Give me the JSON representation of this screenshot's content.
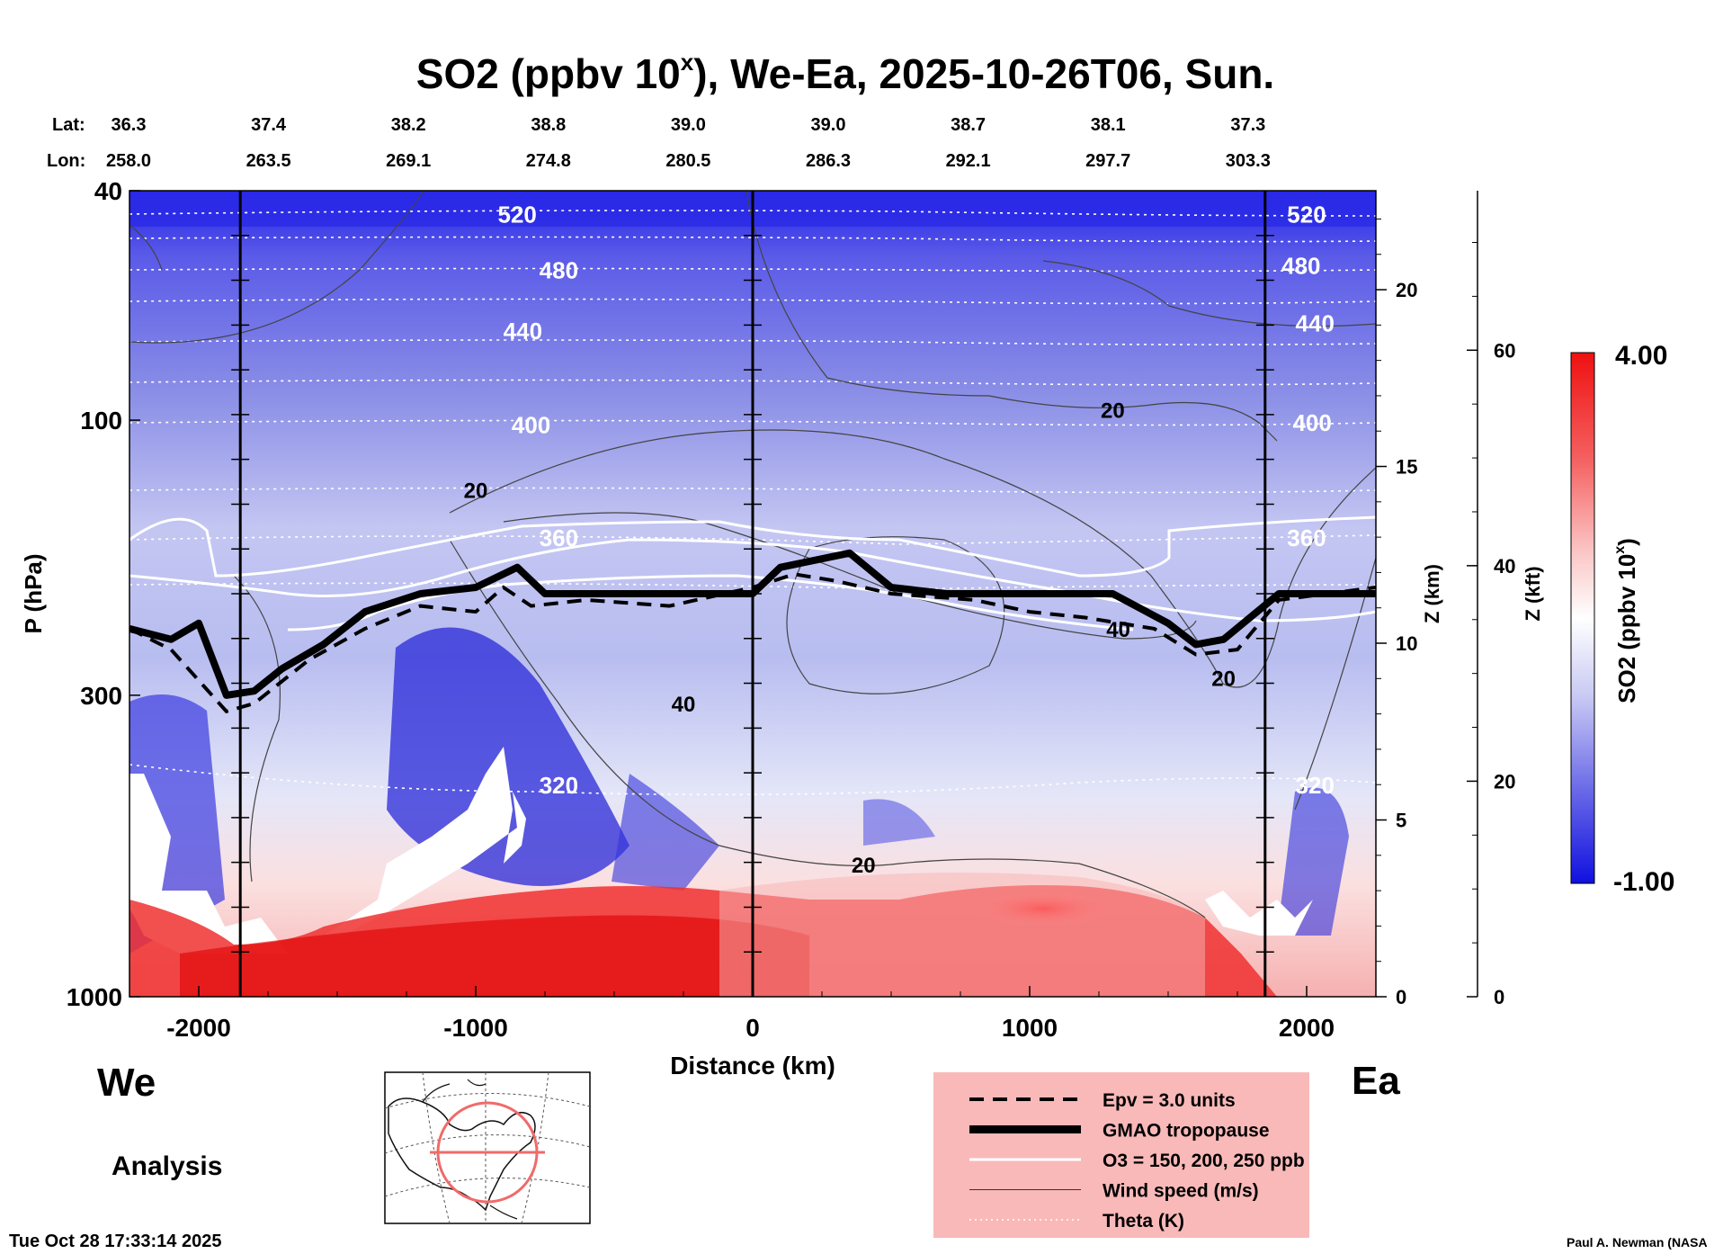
{
  "title": "SO2 (ppbv 10",
  "title_sup": "x",
  "title_rest": "), We-Ea, 2025-10-26T06, Sun.",
  "lat_label": "Lat:",
  "lon_label": "Lon:",
  "lat_values": [
    "36.3",
    "37.4",
    "38.2",
    "38.8",
    "39.0",
    "39.0",
    "38.7",
    "38.1",
    "37.3"
  ],
  "lon_values": [
    "258.0",
    "263.5",
    "269.1",
    "274.8",
    "280.5",
    "286.3",
    "292.1",
    "297.7",
    "303.3"
  ],
  "left_label": "We",
  "right_label": "Ea",
  "analysis_label": "Analysis",
  "timestamp": "Tue Oct 28 17:33:14 2025",
  "credit": "Paul A. Newman (NASA",
  "colorbar": {
    "max_label": "4.00",
    "min_label": "-1.00",
    "title": "SO2 (ppbv 10",
    "title_sup": "x",
    "title_end": ")",
    "colors": {
      "high": "#ee1111",
      "mid": "#ffffff",
      "low": "#1010e0"
    }
  },
  "legend": {
    "items": [
      {
        "label": "Epv = 3.0 units",
        "style": "dashed"
      },
      {
        "label": "GMAO tropopause",
        "style": "thick"
      },
      {
        "label": "O3 = 150, 200, 250 ppb",
        "style": "white"
      },
      {
        "label": "Wind speed (m/s)",
        "style": "thin"
      },
      {
        "label": "Theta (K)",
        "style": "dotted"
      }
    ],
    "background": "#f9b9b9"
  },
  "chart_data": {
    "type": "heatmap",
    "title": "SO2 (ppbv 10^x), We-Ea, 2025-10-26T06, Sun.",
    "xlabel": "Distance (km)",
    "ylabel": "P (hPa)",
    "xlim": [
      -2250,
      2250
    ],
    "ylim": [
      1000,
      40
    ],
    "x_ticks": [
      -2000,
      -1000,
      0,
      1000,
      2000
    ],
    "y_ticks": [
      1000,
      300,
      100,
      40
    ],
    "z_km_label": "Z (km)",
    "z_km_ticks": [
      0,
      5,
      10,
      15,
      20
    ],
    "z_kft_label": "Z (kft)",
    "z_kft_ticks": [
      0,
      20,
      40,
      60
    ],
    "colorbar_range": [
      -1.0,
      4.0
    ],
    "vertical_lines_km": [
      -1850,
      0,
      1850
    ],
    "theta_labels": [
      {
        "text": "520",
        "x": -850,
        "p": 44
      },
      {
        "text": "480",
        "x": -700,
        "p": 55
      },
      {
        "text": "440",
        "x": -830,
        "p": 70
      },
      {
        "text": "400",
        "x": -800,
        "p": 102
      },
      {
        "text": "360",
        "x": -700,
        "p": 160
      },
      {
        "text": "320",
        "x": -700,
        "p": 430
      },
      {
        "text": "520",
        "x": 2000,
        "p": 44
      },
      {
        "text": "480",
        "x": 1980,
        "p": 54
      },
      {
        "text": "440",
        "x": 2030,
        "p": 68
      },
      {
        "text": "400",
        "x": 2020,
        "p": 101
      },
      {
        "text": "360",
        "x": 2000,
        "p": 160
      },
      {
        "text": "320",
        "x": 2030,
        "p": 430
      }
    ],
    "wind_labels": [
      {
        "text": "20",
        "x": -1000,
        "p": 132
      },
      {
        "text": "40",
        "x": -250,
        "p": 310
      },
      {
        "text": "20",
        "x": 400,
        "p": 590
      },
      {
        "text": "20",
        "x": 1300,
        "p": 96
      },
      {
        "text": "40",
        "x": 1320,
        "p": 230
      },
      {
        "text": "20",
        "x": 1700,
        "p": 280
      }
    ],
    "tropopause_hPa": [
      [
        -2250,
        230
      ],
      [
        -2100,
        240
      ],
      [
        -2000,
        225
      ],
      [
        -1900,
        300
      ],
      [
        -1800,
        295
      ],
      [
        -1700,
        270
      ],
      [
        -1550,
        245
      ],
      [
        -1400,
        215
      ],
      [
        -1200,
        200
      ],
      [
        -1000,
        195
      ],
      [
        -850,
        180
      ],
      [
        -750,
        200
      ],
      [
        -400,
        200
      ],
      [
        0,
        200
      ],
      [
        100,
        180
      ],
      [
        350,
        170
      ],
      [
        500,
        195
      ],
      [
        700,
        200
      ],
      [
        1300,
        200
      ],
      [
        1500,
        225
      ],
      [
        1600,
        245
      ],
      [
        1700,
        240
      ],
      [
        1900,
        200
      ],
      [
        2250,
        200
      ]
    ],
    "epv_hPa": [
      [
        -2250,
        230
      ],
      [
        -2100,
        250
      ],
      [
        -1900,
        320
      ],
      [
        -1800,
        310
      ],
      [
        -1600,
        260
      ],
      [
        -1400,
        230
      ],
      [
        -1200,
        210
      ],
      [
        -1000,
        215
      ],
      [
        -900,
        195
      ],
      [
        -800,
        210
      ],
      [
        -600,
        205
      ],
      [
        -300,
        210
      ],
      [
        0,
        195
      ],
      [
        150,
        185
      ],
      [
        300,
        190
      ],
      [
        500,
        200
      ],
      [
        800,
        205
      ],
      [
        1000,
        215
      ],
      [
        1200,
        220
      ],
      [
        1450,
        230
      ],
      [
        1600,
        255
      ],
      [
        1750,
        250
      ],
      [
        1900,
        205
      ],
      [
        2250,
        195
      ]
    ],
    "so2_regions": [
      {
        "desc": "high SO2 boundary layer",
        "value": 3.8,
        "x": [
          -2250,
          1500
        ],
        "p": [
          700,
          1000
        ]
      },
      {
        "desc": "low SO2 mid-troposphere west",
        "value": -0.9,
        "x": [
          -1500,
          -500
        ],
        "p": [
          300,
          600
        ]
      },
      {
        "desc": "background stratosphere",
        "value": -0.5,
        "x": [
          -2250,
          2250
        ],
        "p": [
          40,
          200
        ]
      }
    ]
  }
}
